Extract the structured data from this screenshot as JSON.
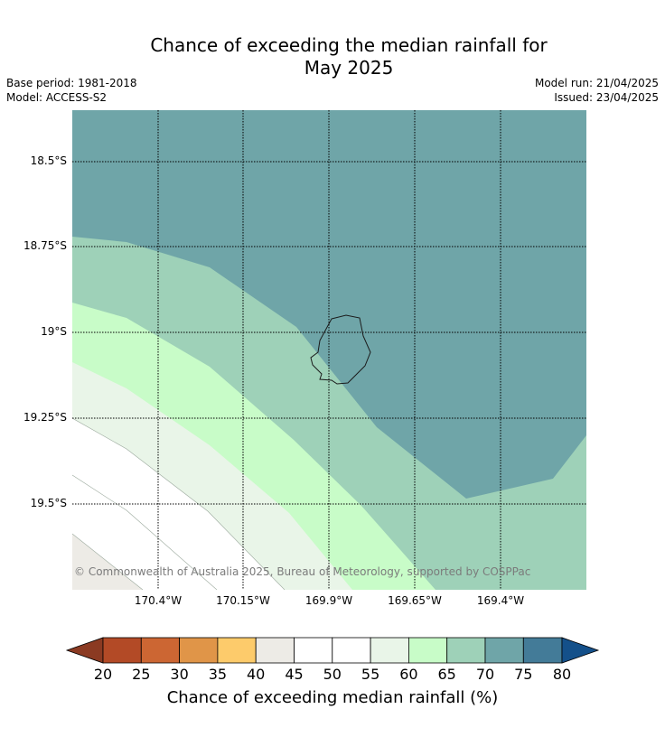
{
  "title_line1": "Chance of exceeding the median rainfall for",
  "title_line2": "May 2025",
  "meta": {
    "base_period": "Base period: 1981-2018",
    "model": "Model: ACCESS-S2",
    "model_run": "Model run: 21/04/2025",
    "issued": "Issued: 23/04/2025"
  },
  "map": {
    "lat_labels": [
      "18.5°S",
      "18.75°S",
      "19°S",
      "19.25°S",
      "19.5°S"
    ],
    "lon_labels": [
      "170.4°W",
      "170.15°W",
      "169.9°W",
      "169.65°W",
      "169.4°W"
    ],
    "copyright": "© Commonwealth of Australia 2025, Bureau of Meteorology, supported by COSPPac"
  },
  "colorbar": {
    "ticks": [
      "20",
      "25",
      "30",
      "35",
      "40",
      "45",
      "50",
      "55",
      "60",
      "65",
      "70",
      "75",
      "80"
    ],
    "label": "Chance of exceeding median rainfall (%)",
    "colors": {
      "below_20": "#8b3a22",
      "20_25": "#b34a26",
      "25_30": "#cc6633",
      "30_35": "#e09548",
      "35_40": "#fdcb6b",
      "40_45": "#edebe6",
      "45_50": "#ffffff",
      "50_55": "#ffffff",
      "55_60": "#e9f5e8",
      "60_65": "#c8fcc8",
      "65_70": "#9ed1b8",
      "70_75": "#6fa5a8",
      "75_80": "#437b98",
      "above_80": "#14508a"
    }
  }
}
